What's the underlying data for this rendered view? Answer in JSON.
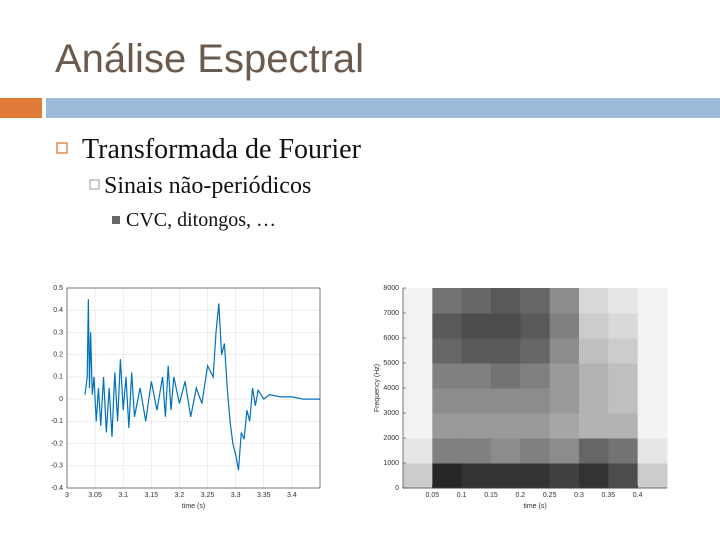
{
  "slide": {
    "title": "Análise Espectral",
    "bullets": [
      {
        "text": "Transformada de Fourier",
        "children": [
          {
            "text": "Sinais não-periódicos",
            "children": [
              {
                "text": "CVC, ditongos, …"
              }
            ]
          }
        ]
      }
    ]
  },
  "chart_data": [
    {
      "type": "line",
      "xlabel": "time (s)",
      "color": "#0072bd",
      "grid": true,
      "xlim": [
        3,
        3.45
      ],
      "ylim": [
        -0.4,
        0.5
      ],
      "xticks": [
        3,
        3.05,
        3.1,
        3.15,
        3.2,
        3.25,
        3.3,
        3.35,
        3.4
      ],
      "yticks": [
        -0.4,
        -0.3,
        -0.2,
        -0.1,
        0,
        0.1,
        0.2,
        0.3,
        0.4,
        0.5
      ],
      "x": [
        3.032,
        3.036,
        3.038,
        3.04,
        3.042,
        3.045,
        3.048,
        3.052,
        3.056,
        3.06,
        3.065,
        3.07,
        3.075,
        3.08,
        3.085,
        3.09,
        3.095,
        3.1,
        3.105,
        3.11,
        3.115,
        3.12,
        3.13,
        3.14,
        3.15,
        3.16,
        3.17,
        3.175,
        3.18,
        3.185,
        3.19,
        3.2,
        3.21,
        3.22,
        3.23,
        3.24,
        3.25,
        3.26,
        3.265,
        3.27,
        3.275,
        3.28,
        3.285,
        3.29,
        3.295,
        3.3,
        3.305,
        3.31,
        3.315,
        3.32,
        3.325,
        3.33,
        3.335,
        3.34,
        3.35,
        3.36,
        3.38,
        3.4,
        3.42,
        3.45
      ],
      "values": [
        0.02,
        0.1,
        0.45,
        0.05,
        0.3,
        0.02,
        0.1,
        -0.1,
        0.05,
        -0.12,
        0.1,
        -0.15,
        0.05,
        -0.17,
        0.12,
        -0.1,
        0.18,
        -0.05,
        0.1,
        -0.13,
        0.12,
        -0.08,
        0.05,
        -0.1,
        0.08,
        -0.05,
        0.1,
        -0.08,
        0.15,
        -0.05,
        0.1,
        -0.02,
        0.08,
        -0.08,
        0.05,
        -0.02,
        0.15,
        0.1,
        0.3,
        0.43,
        0.2,
        0.25,
        0.05,
        -0.1,
        -0.2,
        -0.25,
        -0.32,
        -0.15,
        -0.18,
        -0.05,
        -0.1,
        0.05,
        -0.03,
        0.04,
        0,
        0.02,
        0.01,
        0.01,
        0,
        0
      ]
    },
    {
      "type": "heatmap",
      "xlabel": "time (s)",
      "ylabel": "Frequency (Hz)",
      "grid": false,
      "xlim": [
        0,
        0.45
      ],
      "ylim": [
        0,
        8000
      ],
      "xticks": [
        0.05,
        0.1,
        0.15,
        0.2,
        0.25,
        0.3,
        0.35,
        0.4
      ],
      "yticks": [
        0,
        1000,
        2000,
        3000,
        4000,
        5000,
        6000,
        7000,
        8000
      ],
      "xbins": [
        0,
        0.05,
        0.1,
        0.15,
        0.2,
        0.25,
        0.3,
        0.35,
        0.4,
        0.45
      ],
      "ybins": [
        0,
        1000,
        2000,
        3000,
        4000,
        5000,
        6000,
        7000,
        8000
      ],
      "values": [
        [
          0.2,
          0.85,
          0.8,
          0.8,
          0.8,
          0.75,
          0.8,
          0.7,
          0.2
        ],
        [
          0.1,
          0.5,
          0.5,
          0.45,
          0.5,
          0.45,
          0.6,
          0.55,
          0.1
        ],
        [
          0.05,
          0.4,
          0.4,
          0.4,
          0.4,
          0.35,
          0.3,
          0.3,
          0.05
        ],
        [
          0.05,
          0.45,
          0.45,
          0.45,
          0.45,
          0.4,
          0.3,
          0.25,
          0.05
        ],
        [
          0.05,
          0.5,
          0.5,
          0.55,
          0.5,
          0.4,
          0.3,
          0.25,
          0.05
        ],
        [
          0.05,
          0.6,
          0.65,
          0.65,
          0.6,
          0.45,
          0.25,
          0.2,
          0.05
        ],
        [
          0.05,
          0.65,
          0.7,
          0.7,
          0.65,
          0.5,
          0.2,
          0.15,
          0.05
        ],
        [
          0.05,
          0.55,
          0.6,
          0.65,
          0.6,
          0.45,
          0.15,
          0.1,
          0.05
        ]
      ]
    }
  ]
}
